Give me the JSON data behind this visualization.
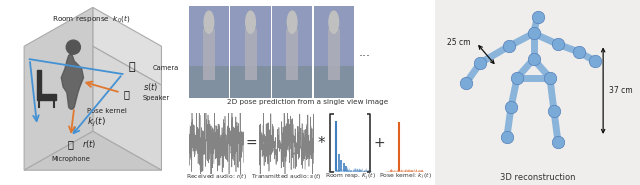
{
  "title": "",
  "background_color": "#ffffff",
  "fig_width": 6.4,
  "fig_height": 1.85,
  "dpi": 100,
  "left_panel": {
    "room_response_label": "Room response  $k_0(t)$",
    "camera_label": "Camera",
    "speaker_label": "Speaker",
    "speaker_signal": "$s(t)$",
    "pose_kernel_label": "Pose kernel\n$k_j(t)$",
    "microphone_label": "Microphone",
    "mic_signal": "$r(t)$",
    "arrow_blue": "#4492d4",
    "arrow_orange": "#e07830"
  },
  "middle_top_label": "2D pose prediction from a single view image",
  "middle_dots": "...",
  "bottom_labels": [
    "Received audio: $r(t)$",
    "Transmitted audio: $s(t)$",
    "Room resp. $\\bar{K}_j\\,(t)$",
    "Pose kernel: $k_j\\,(t)$"
  ],
  "bottom_operators": [
    "=",
    "*",
    "+"
  ],
  "signal_color": "#888888",
  "room_resp_color": "#4080c0",
  "pose_kernel_color": "#e06020",
  "right_label": "3D reconstruction",
  "right_dim1": "25 cm",
  "right_dim2": "37 cm",
  "skeleton_color": "#7aaad8",
  "skeleton_lw": 5.0,
  "joint_size": 80
}
